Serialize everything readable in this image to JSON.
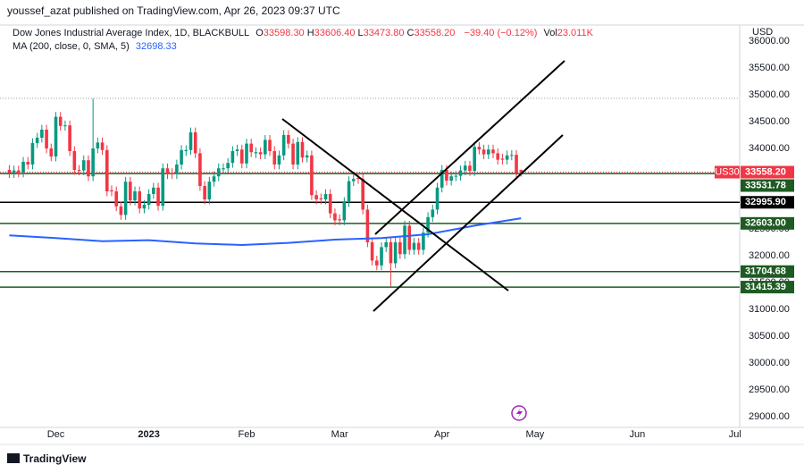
{
  "header": "youssef_azat published on TradingView.com, Apr 26, 2023 09:37 UTC",
  "footer": "TradingView",
  "chart_data": {
    "type": "candlestick",
    "title": "Dow Jones Industrial Average Index, 1D, BLACKBULL",
    "ohlc_legend": [
      {
        "key": "O",
        "value": "33598.30"
      },
      {
        "key": "H",
        "value": "33606.40"
      },
      {
        "key": "L",
        "value": "33473.80"
      },
      {
        "key": "C",
        "value": "33558.20"
      }
    ],
    "change": "−39.40 (−0.12%)",
    "volume": {
      "key": "Vol",
      "value": "23.011K"
    },
    "currency": "USD",
    "symbol": "US30",
    "up_color": "#089981",
    "down_color": "#f23645",
    "open": [
      33600,
      33540,
      33590,
      33550,
      33750,
      33700,
      34100,
      34200,
      34350,
      34000,
      33850,
      34590,
      34420,
      34430,
      33950,
      33600,
      33590,
      33780,
      33480,
      34000,
      34110,
      33970,
      33220,
      33200,
      32920,
      32760,
      33380,
      33030,
      33200,
      32880,
      32950,
      33150,
      33270,
      32930,
      33630,
      33540,
      33520,
      33700,
      33950,
      33970,
      34300,
      33910,
      33300,
      33050,
      33380,
      33480,
      33610,
      33630,
      33730,
      33950,
      33980,
      33720,
      34090,
      33910,
      33930,
      33890,
      34160,
      33950,
      33700,
      33870,
      34250,
      34090,
      33700,
      34120,
      33830,
      33870,
      33130,
      33070,
      33050,
      33150,
      32790,
      32680,
      32660,
      33000,
      33390,
      33450,
      33430,
      32860,
      32250,
      31910,
      31820,
      32160,
      32250,
      31860,
      32250,
      32030,
      32560,
      32110,
      32240,
      32110,
      32430,
      32720,
      32860,
      33270,
      33600,
      33400,
      33480,
      33490,
      33590,
      33680,
      33580,
      34030,
      33980,
      33890,
      33980,
      33910,
      33810,
      33790,
      33870,
      33880,
      33598.3
    ],
    "high": [
      33690,
      33680,
      33680,
      33840,
      33840,
      34190,
      34290,
      34440,
      34440,
      34090,
      34680,
      34680,
      34520,
      34520,
      34040,
      33690,
      33870,
      33870,
      34930,
      34200,
      34200,
      34060,
      33310,
      33290,
      33010,
      33470,
      33470,
      33290,
      33290,
      33040,
      33240,
      33360,
      33360,
      33720,
      33720,
      33630,
      33790,
      34060,
      34060,
      34390,
      34390,
      34000,
      33390,
      33470,
      33570,
      33720,
      33720,
      33820,
      34040,
      34070,
      34070,
      34180,
      34180,
      34020,
      34020,
      34250,
      34250,
      34040,
      33960,
      34340,
      34340,
      34180,
      34210,
      34210,
      33960,
      33960,
      33220,
      33160,
      33240,
      33240,
      32880,
      32770,
      33090,
      33480,
      33520,
      33540,
      33520,
      32950,
      32340,
      32000,
      32250,
      32340,
      32340,
      32340,
      32340,
      32650,
      32650,
      32330,
      32330,
      32520,
      32810,
      32950,
      33360,
      33690,
      33690,
      33570,
      33580,
      33680,
      33770,
      33770,
      34120,
      34120,
      34070,
      34070,
      34070,
      34000,
      33900,
      33960,
      33970,
      33970,
      33606.4
    ],
    "low": [
      33450,
      33450,
      33460,
      33460,
      33610,
      33610,
      34010,
      34110,
      33910,
      33760,
      33760,
      34330,
      34330,
      33860,
      33510,
      33500,
      33500,
      33390,
      33390,
      33910,
      33880,
      33110,
      33110,
      32830,
      32670,
      32670,
      32940,
      32940,
      32790,
      32790,
      32860,
      33060,
      32840,
      32840,
      33430,
      33430,
      33430,
      33610,
      33860,
      33880,
      33820,
      33210,
      32960,
      32960,
      33290,
      33390,
      33520,
      33540,
      33640,
      33860,
      33630,
      33630,
      33840,
      33820,
      33800,
      33800,
      33860,
      33610,
      33610,
      33780,
      34000,
      33610,
      33610,
      33740,
      33740,
      33040,
      32960,
      32960,
      32960,
      32700,
      32570,
      32570,
      32570,
      32910,
      33300,
      33340,
      32770,
      32160,
      31820,
      31730,
      31730,
      32070,
      31430,
      31770,
      31940,
      31940,
      32020,
      32020,
      32020,
      32020,
      32340,
      32630,
      32770,
      33180,
      33310,
      33310,
      33390,
      33400,
      33500,
      33490,
      33490,
      33890,
      33800,
      33800,
      33820,
      33700,
      33700,
      33700,
      33780,
      33440,
      33473.8
    ],
    "close": [
      33540,
      33590,
      33550,
      33750,
      33700,
      34100,
      34200,
      34350,
      34000,
      33850,
      34590,
      34420,
      34430,
      33950,
      33600,
      33590,
      33780,
      33480,
      34000,
      34110,
      33970,
      33200,
      33200,
      32920,
      32760,
      33380,
      33030,
      33200,
      32880,
      32950,
      33150,
      33270,
      32930,
      33630,
      33520,
      33520,
      33700,
      33970,
      33970,
      34300,
      33910,
      33300,
      33050,
      33380,
      33480,
      33630,
      33630,
      33730,
      33950,
      33980,
      33720,
      34090,
      33930,
      33930,
      33890,
      34160,
      33950,
      33700,
      33870,
      34250,
      34090,
      33700,
      34120,
      33830,
      33870,
      33130,
      33050,
      33050,
      33150,
      32790,
      32660,
      32660,
      33000,
      33390,
      33430,
      33430,
      32860,
      32250,
      31910,
      31820,
      32160,
      32250,
      31860,
      32250,
      32030,
      32560,
      32110,
      32240,
      32110,
      32430,
      32720,
      32860,
      33270,
      33600,
      33400,
      33480,
      33490,
      33590,
      33680,
      33580,
      34030,
      33980,
      33890,
      33980,
      33910,
      33790,
      33790,
      33870,
      33880,
      33530,
      33558.2
    ],
    "current_price": {
      "value": 33558.2,
      "label": "33558.20"
    },
    "ma": {
      "name": "MA (200, close, 0, SMA, 5)",
      "value_label": "32698.33",
      "color": "#2962ff",
      "x": [
        0,
        10,
        20,
        30,
        40,
        50,
        60,
        70,
        80,
        90,
        100,
        110
      ],
      "values": [
        32380,
        32330,
        32270,
        32290,
        32230,
        32200,
        32240,
        32300,
        32330,
        32400,
        32560,
        32698.33
      ]
    },
    "levels": [
      {
        "value": 33531.78,
        "label": "33531.78",
        "color": "#1e5b23"
      },
      {
        "value": 32995.9,
        "label": "32995.90",
        "color": "#000000"
      },
      {
        "value": 32603,
        "label": "32603.00",
        "color": "#1e5b23"
      },
      {
        "value": 31704.68,
        "label": "31704.68",
        "color": "#1e5b23"
      },
      {
        "value": 31415.39,
        "label": "31415.39",
        "color": "#1e5b23"
      }
    ],
    "xlim": [
      -2,
      157
    ],
    "xticks": [
      {
        "value": 10,
        "label": "Dec"
      },
      {
        "value": 30,
        "label": "2023"
      },
      {
        "value": 51,
        "label": "Feb"
      },
      {
        "value": 71,
        "label": "Mar"
      },
      {
        "value": 93,
        "label": "Apr"
      },
      {
        "value": 113,
        "label": "May"
      },
      {
        "value": 135,
        "label": "Jun"
      },
      {
        "value": 156,
        "label": "Jul"
      }
    ],
    "ylim": [
      28800,
      36267
    ],
    "yticks": [
      {
        "value": 29000,
        "label": "29000.00"
      },
      {
        "value": 29500,
        "label": "29500.00"
      },
      {
        "value": 30000,
        "label": "30000.00"
      },
      {
        "value": 30500,
        "label": "30500.00"
      },
      {
        "value": 31000,
        "label": "31000.00"
      },
      {
        "value": 31500,
        "label": "31500.00"
      },
      {
        "value": 32000,
        "label": "32000.00"
      },
      {
        "value": 32500,
        "label": "32500.00"
      },
      {
        "value": 33000,
        "label": "33000.00"
      },
      {
        "value": 33500,
        "label": "33500.00"
      },
      {
        "value": 34000,
        "label": "34000.00"
      },
      {
        "value": 34500,
        "label": "34500.00"
      },
      {
        "value": 35000,
        "label": "35000.00"
      },
      {
        "value": 35500,
        "label": "35500.00"
      },
      {
        "value": 36000,
        "label": "36000.00"
      }
    ],
    "grid": false
  }
}
